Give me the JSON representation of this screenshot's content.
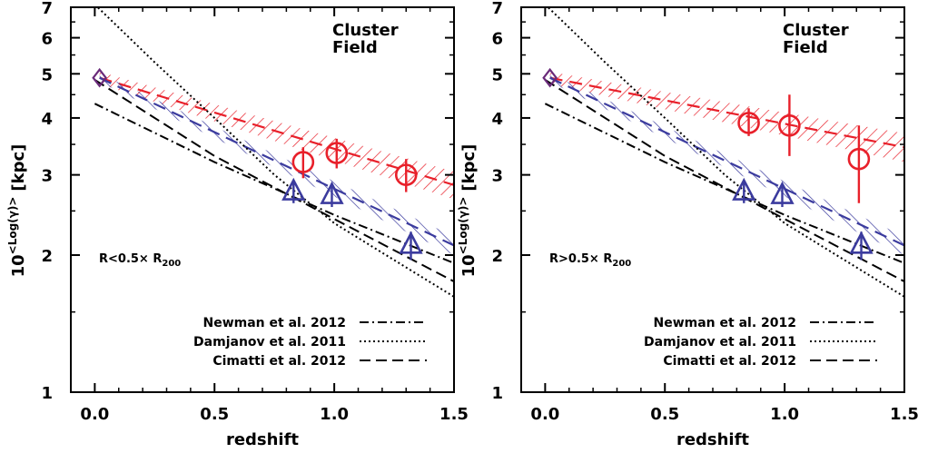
{
  "chart_data": [
    {
      "type": "line",
      "panel_label": "R<0.5× R",
      "panel_label_sub": "200",
      "xlabel": "redshift",
      "ylabel": "10",
      "ylabel_sup": "<Log(γ)>",
      "ylabel_unit": "[kpc]",
      "xlim": [
        -0.1,
        1.5
      ],
      "ylim": [
        1,
        7
      ],
      "yscale": "log",
      "xticks": [
        "0.0",
        "0.5",
        "1.0",
        "1.5"
      ],
      "yticks": [
        "1",
        "2",
        "3",
        "4",
        "5",
        "6",
        "7"
      ],
      "legend": {
        "top": [
          {
            "label": "Cluster",
            "color": "#e8202a"
          },
          {
            "label": "Field",
            "color": "#3b3b9e"
          }
        ],
        "bottom": [
          {
            "label": "Newman et al. 2012",
            "style": "dashdot"
          },
          {
            "label": "Damjanov et al. 2011",
            "style": "dotted"
          },
          {
            "label": "Cimatti et al. 2012",
            "style": "dashed"
          }
        ]
      },
      "series": [
        {
          "name": "Cluster",
          "kind": "points",
          "marker": "circle",
          "color": "#e8202a",
          "x": [
            0.87,
            1.01,
            1.3
          ],
          "y": [
            3.2,
            3.35,
            3.0
          ],
          "ylow": [
            2.95,
            3.1,
            2.75
          ],
          "yhigh": [
            3.45,
            3.6,
            3.25
          ]
        },
        {
          "name": "Field",
          "kind": "points",
          "marker": "triangle",
          "color": "#3b3b9e",
          "x": [
            0.83,
            0.99,
            1.32
          ],
          "y": [
            2.75,
            2.7,
            2.1
          ],
          "ylow": [
            2.6,
            2.55,
            1.95
          ],
          "yhigh": [
            2.9,
            2.85,
            2.25
          ]
        },
        {
          "name": "Local",
          "kind": "points",
          "marker": "diamond",
          "color": "#3b3b9e",
          "x": [
            0.02
          ],
          "y": [
            4.9
          ]
        },
        {
          "name": "Cluster fit",
          "kind": "band",
          "color": "#e8202a",
          "x": [
            0.02,
            1.5
          ],
          "y": [
            4.9,
            2.85
          ],
          "ylow": [
            4.75,
            2.65
          ],
          "yhigh": [
            5.05,
            3.05
          ]
        },
        {
          "name": "Field fit",
          "kind": "band",
          "color": "#3b3b9e",
          "x": [
            0.02,
            1.5
          ],
          "y": [
            4.9,
            2.1
          ],
          "ylow": [
            4.8,
            2.0
          ],
          "yhigh": [
            5.0,
            2.2
          ]
        },
        {
          "name": "Newman et al. 2012",
          "kind": "line",
          "style": "dashdot",
          "x": [
            0.0,
            0.5,
            1.0,
            1.5
          ],
          "y": [
            4.3,
            3.2,
            2.45,
            1.92
          ]
        },
        {
          "name": "Damjanov et al. 2011",
          "kind": "line",
          "style": "dotted",
          "x": [
            0.0,
            0.25,
            0.5,
            0.75,
            1.0,
            1.25,
            1.5
          ],
          "y": [
            7.1,
            5.3,
            4.0,
            3.0,
            2.35,
            1.95,
            1.62
          ]
        },
        {
          "name": "Cimatti et al. 2012",
          "kind": "line",
          "style": "dashed",
          "x": [
            0.0,
            0.5,
            1.0,
            1.5
          ],
          "y": [
            4.85,
            3.3,
            2.4,
            1.75
          ]
        }
      ]
    },
    {
      "type": "line",
      "panel_label": "R>0.5× R",
      "panel_label_sub": "200",
      "xlabel": "redshift",
      "ylabel": "10",
      "ylabel_sup": "<Log(γ)>",
      "ylabel_unit": "[kpc]",
      "xlim": [
        -0.1,
        1.5
      ],
      "ylim": [
        1,
        7
      ],
      "yscale": "log",
      "xticks": [
        "0.0",
        "0.5",
        "1.0",
        "1.5"
      ],
      "yticks": [
        "1",
        "2",
        "3",
        "4",
        "5",
        "6",
        "7"
      ],
      "legend": {
        "top": [
          {
            "label": "Cluster",
            "color": "#e8202a"
          },
          {
            "label": "Field",
            "color": "#3b3b9e"
          }
        ],
        "bottom": [
          {
            "label": "Newman et al. 2012",
            "style": "dashdot"
          },
          {
            "label": "Damjanov et al. 2011",
            "style": "dotted"
          },
          {
            "label": "Cimatti et al. 2012",
            "style": "dashed"
          }
        ]
      },
      "series": [
        {
          "name": "Cluster",
          "kind": "points",
          "marker": "circle",
          "color": "#e8202a",
          "x": [
            0.85,
            1.02,
            1.31
          ],
          "y": [
            3.9,
            3.85,
            3.25
          ],
          "ylow": [
            3.65,
            3.3,
            2.6
          ],
          "yhigh": [
            4.2,
            4.5,
            3.85
          ]
        },
        {
          "name": "Field",
          "kind": "points",
          "marker": "triangle",
          "color": "#3b3b9e",
          "x": [
            0.83,
            0.99,
            1.32
          ],
          "y": [
            2.75,
            2.7,
            2.1
          ],
          "ylow": [
            2.6,
            2.55,
            1.95
          ],
          "yhigh": [
            2.9,
            2.85,
            2.25
          ]
        },
        {
          "name": "Local",
          "kind": "points",
          "marker": "diamond",
          "color": "#3b3b9e",
          "x": [
            0.02
          ],
          "y": [
            4.9
          ]
        },
        {
          "name": "Cluster fit",
          "kind": "band",
          "color": "#e8202a",
          "x": [
            0.02,
            1.5
          ],
          "y": [
            4.9,
            3.45
          ],
          "ylow": [
            4.75,
            3.2
          ],
          "yhigh": [
            5.05,
            3.7
          ]
        },
        {
          "name": "Field fit",
          "kind": "band",
          "color": "#3b3b9e",
          "x": [
            0.02,
            1.5
          ],
          "y": [
            4.9,
            2.1
          ],
          "ylow": [
            4.8,
            2.0
          ],
          "yhigh": [
            5.0,
            2.2
          ]
        },
        {
          "name": "Newman et al. 2012",
          "kind": "line",
          "style": "dashdot",
          "x": [
            0.0,
            0.5,
            1.0,
            1.5
          ],
          "y": [
            4.3,
            3.2,
            2.45,
            1.92
          ]
        },
        {
          "name": "Damjanov et al. 2011",
          "kind": "line",
          "style": "dotted",
          "x": [
            0.0,
            0.25,
            0.5,
            0.75,
            1.0,
            1.25,
            1.5
          ],
          "y": [
            7.1,
            5.3,
            4.0,
            3.0,
            2.35,
            1.95,
            1.62
          ]
        },
        {
          "name": "Cimatti et al. 2012",
          "kind": "line",
          "style": "dashed",
          "x": [
            0.0,
            0.5,
            1.0,
            1.5
          ],
          "y": [
            4.85,
            3.3,
            2.4,
            1.75
          ]
        }
      ]
    }
  ]
}
